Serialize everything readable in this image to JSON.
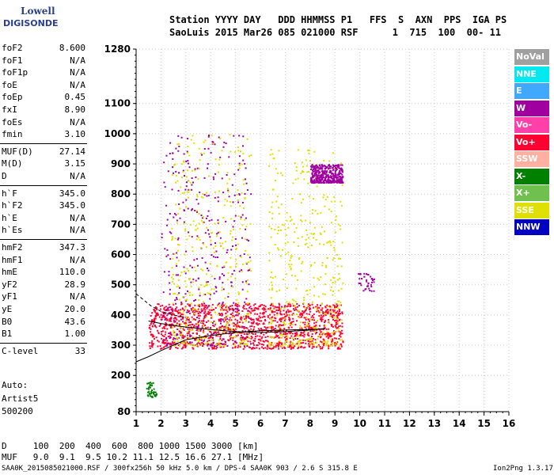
{
  "logo": {
    "line1": "Lowell",
    "line2": "DIGISONDE"
  },
  "header": {
    "row1": "Station YYYY DAY   DDD HHMMSS P1   FFS  S  AXN  PPS  IGA PS",
    "row2": "SaoLuis 2015 Mar26 085 021000 RSF      1  715  100  00- 11"
  },
  "params": [
    {
      "name": "foF2",
      "value": "8.600"
    },
    {
      "name": "foF1",
      "value": "N/A"
    },
    {
      "name": "foF1p",
      "value": "N/A"
    },
    {
      "name": "foE",
      "value": "N/A"
    },
    {
      "name": "foEp",
      "value": "0.45"
    },
    {
      "name": "fxI",
      "value": "8.90"
    },
    {
      "name": "foEs",
      "value": "N/A"
    },
    {
      "name": "fmin",
      "value": "3.10"
    },
    {
      "name": "MUF(D)",
      "value": "27.14"
    },
    {
      "name": "M(D)",
      "value": "3.15"
    },
    {
      "name": "D",
      "value": "N/A"
    },
    {
      "name": "h`F",
      "value": "345.0"
    },
    {
      "name": "h`F2",
      "value": "345.0"
    },
    {
      "name": "h`E",
      "value": "N/A"
    },
    {
      "name": "h`Es",
      "value": "N/A"
    },
    {
      "name": "hmF2",
      "value": "347.3"
    },
    {
      "name": "hmF1",
      "value": "N/A"
    },
    {
      "name": "hmE",
      "value": "110.0"
    },
    {
      "name": "yF2",
      "value": "28.9"
    },
    {
      "name": "yF1",
      "value": "N/A"
    },
    {
      "name": "yE",
      "value": "20.0"
    },
    {
      "name": "B0",
      "value": "43.6"
    },
    {
      "name": "B1",
      "value": "1.00"
    },
    {
      "name": "C-level",
      "value": "33"
    }
  ],
  "auto": {
    "line1": "Auto:",
    "line2": "Artist5",
    "line3": "500200"
  },
  "footer": {
    "d_row": "D     100  200  400  600  800 1000 1500 3000 [km]",
    "muf_row": "MUF   9.0  9.1  9.5 10.2 11.1 12.5 16.6 27.1 [MHz]",
    "file_row": "SAA0K_2015085021000.RSF / 300fx256h 50 kHz 5.0 km / DPS-4 SAA0K 903 / 2.6 S 315.8 E",
    "version": "Ion2Png 1.3.17"
  },
  "legend": [
    {
      "label": "NoVal",
      "color": "#a0a0a0"
    },
    {
      "label": "NNE",
      "color": "#00e8f0"
    },
    {
      "label": "E",
      "color": "#40a8ff"
    },
    {
      "label": "W",
      "color": "#a000a0"
    },
    {
      "label": "Vo-",
      "color": "#ff40a8"
    },
    {
      "label": "Vo+",
      "color": "#ff0030"
    },
    {
      "label": "SSW",
      "color": "#ffb0a0"
    },
    {
      "label": "X-",
      "color": "#008000"
    },
    {
      "label": "X+",
      "color": "#70c050"
    },
    {
      "label": "SSE",
      "color": "#e0e000"
    },
    {
      "label": "NNW",
      "color": "#0000c0"
    }
  ],
  "chart_data": {
    "type": "scatter",
    "xlabel": "",
    "ylabel": "",
    "xlim": [
      1,
      16
    ],
    "ylim": [
      80,
      1280
    ],
    "x_ticks": [
      1,
      2,
      3,
      4,
      5,
      6,
      7,
      8,
      9,
      10,
      11,
      12,
      13,
      14,
      15,
      16
    ],
    "y_ticks": [
      80,
      200,
      300,
      400,
      500,
      600,
      700,
      800,
      900,
      1000,
      1100,
      1280
    ],
    "grid": true,
    "clusters": [
      {
        "fmin": 1.5,
        "fmax": 9.3,
        "hmin": 290,
        "hmax": 440,
        "color": "#ff0030",
        "density": "high"
      },
      {
        "fmin": 2.0,
        "fmax": 5.6,
        "hmin": 300,
        "hmax": 1000,
        "color": "#a000a0",
        "density": "medium"
      },
      {
        "fmin": 2.4,
        "fmax": 5.6,
        "hmin": 300,
        "hmax": 1000,
        "color": "#e0e000",
        "density": "medium"
      },
      {
        "fmin": 6.3,
        "fmax": 9.3,
        "hmin": 300,
        "hmax": 950,
        "color": "#e0e000",
        "density": "medium"
      },
      {
        "fmin": 8.0,
        "fmax": 9.3,
        "hmin": 840,
        "hmax": 900,
        "color": "#a000a0",
        "density": "medium"
      },
      {
        "fmin": 9.9,
        "fmax": 10.6,
        "hmin": 480,
        "hmax": 540,
        "color": "#a000a0",
        "density": "low"
      },
      {
        "fmin": 1.4,
        "fmax": 1.8,
        "hmin": 130,
        "hmax": 180,
        "color": "#008000",
        "density": "low"
      }
    ],
    "lines": [
      {
        "name": "o-trace",
        "x": [
          1.0,
          1.5,
          2.0,
          2.5,
          3.0,
          4.0,
          5.0,
          6.0,
          7.0,
          8.0,
          8.6
        ],
        "y": [
          245,
          262,
          282,
          300,
          318,
          332,
          342,
          348,
          350,
          352,
          354
        ],
        "style": "solid"
      },
      {
        "name": "profile",
        "x": [
          1.5,
          2.0,
          2.5,
          3.0,
          4.0,
          5.0,
          6.0,
          7.0,
          8.0,
          8.6
        ],
        "y": [
          380,
          372,
          365,
          360,
          352,
          345,
          342,
          345,
          350,
          355
        ],
        "style": "solid"
      },
      {
        "name": "upper-dashed",
        "x": [
          1.0,
          1.3,
          1.6,
          2.0,
          2.5,
          3.0
        ],
        "y": [
          470,
          450,
          430,
          412,
          400,
          392
        ],
        "style": "dashed"
      }
    ]
  }
}
